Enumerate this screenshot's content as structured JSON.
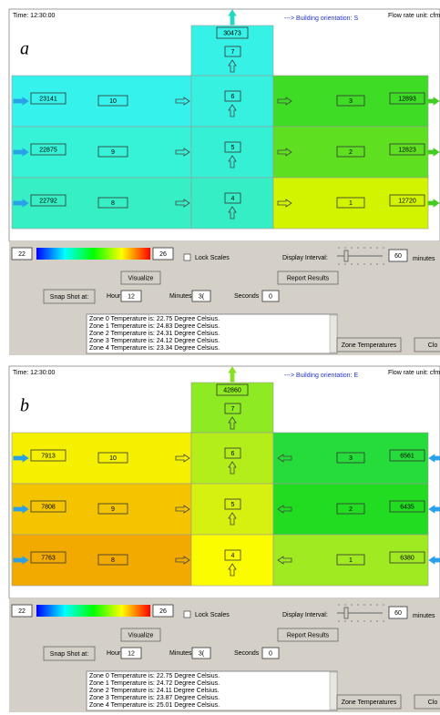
{
  "panels": [
    {
      "label": "a",
      "time": "Time: 12:30:00",
      "orientation": "---> Building orientation: S",
      "flow_unit": "Flow rate unit: cfm",
      "east_flow": "out",
      "zones": [
        {
          "label": "10",
          "color": "#36f2ec"
        },
        {
          "label": "9",
          "color": "#36f2d6"
        },
        {
          "label": "8",
          "color": "#36efc4"
        },
        {
          "label": "7",
          "color": "#36f2e6"
        },
        {
          "label": "6",
          "color": "#36f0e0"
        },
        {
          "label": "5",
          "color": "#36f0d6"
        },
        {
          "label": "4",
          "color": "#36eec6"
        },
        {
          "label": "3",
          "color": "#3edc24"
        },
        {
          "label": "2",
          "color": "#5ee020"
        },
        {
          "label": "1",
          "color": "#d2f400"
        }
      ],
      "top_flow": 30473,
      "west_flows": [
        23141,
        22875,
        22792
      ],
      "east_flows": [
        12893,
        12823,
        12720
      ],
      "scale_min": 22,
      "scale_max": 26,
      "lock_scales": "Lock Scales",
      "display_interval_label": "Display Interval:",
      "display_interval": 60,
      "minutes_unit": "minutes",
      "visualize": "Visualize",
      "report": "Report Results",
      "snapshot": "Snap Shot at:",
      "hours_label": "Hours",
      "hours": 12,
      "minutes_label": "Minutes",
      "minutes": "3(",
      "seconds_label": "Seconds",
      "seconds": 0,
      "log": [
        "Zone 0 Temperature is: 22.75 Degree Celsius.",
        "Zone 1 Temperature is: 24.83 Degree Celsius.",
        "Zone 2 Temperature is: 24.31 Degree Celsius.",
        "Zone 3 Temperature is: 24.12 Degree Celsius.",
        "Zone 4 Temperature is: 23.34 Degree Celsius."
      ],
      "zone_temps": "Zone Temperatures",
      "close": "Clo"
    },
    {
      "label": "b",
      "time": "Time: 12:30:00",
      "orientation": "---> Building orientation: E",
      "flow_unit": "Flow rate unit: cfm",
      "east_flow": "in",
      "zones": [
        {
          "label": "10",
          "color": "#f4f000"
        },
        {
          "label": "9",
          "color": "#f4c400"
        },
        {
          "label": "8",
          "color": "#f2aa00"
        },
        {
          "label": "7",
          "color": "#8eea22"
        },
        {
          "label": "6",
          "color": "#b4ee1a"
        },
        {
          "label": "5",
          "color": "#d6f010"
        },
        {
          "label": "4",
          "color": "#fcfc00"
        },
        {
          "label": "3",
          "color": "#26dc3a"
        },
        {
          "label": "2",
          "color": "#22dc22"
        },
        {
          "label": "1",
          "color": "#a0ea22"
        }
      ],
      "top_flow": 42860,
      "west_flows": [
        7913,
        7808,
        7763
      ],
      "east_flows": [
        6561,
        6435,
        6380
      ],
      "scale_min": 22,
      "scale_max": 26,
      "lock_scales": "Lock Scales",
      "display_interval_label": "Display Interval:",
      "display_interval": 60,
      "minutes_unit": "minutes",
      "visualize": "Visualize",
      "report": "Report Results",
      "snapshot": "Snap Shot at:",
      "hours_label": "Hours",
      "hours": 12,
      "minutes_label": "Minutes",
      "minutes": "3(",
      "seconds_label": "Seconds",
      "seconds": 0,
      "log": [
        "Zone 0 Temperature is: 22.75 Degree Celsius.",
        "Zone 1 Temperature is: 24.72 Degree Celsius.",
        "Zone 2 Temperature is: 24.11 Degree Celsius.",
        "Zone 3 Temperature is: 23.87 Degree Celsius.",
        "Zone 4 Temperature is: 25.01 Degree Celsius."
      ],
      "zone_temps": "Zone Temperatures",
      "close": "Clo"
    }
  ]
}
